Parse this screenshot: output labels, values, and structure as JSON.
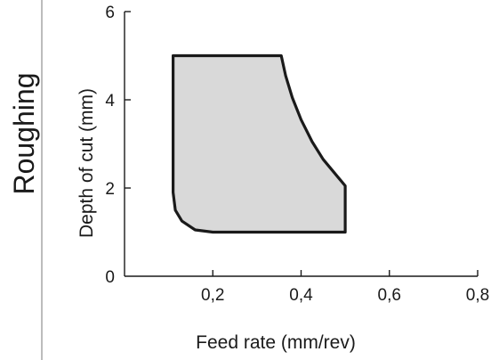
{
  "chart_data": {
    "type": "area",
    "side_label": "Roughing",
    "xlabel": "Feed rate (mm/rev)",
    "ylabel": "Depth of cut (mm)",
    "xlim": [
      0,
      0.8
    ],
    "ylim": [
      0,
      6
    ],
    "x_ticks": [
      {
        "value": 0.2,
        "label": "0,2"
      },
      {
        "value": 0.4,
        "label": "0,4"
      },
      {
        "value": 0.6,
        "label": "0,6"
      },
      {
        "value": 0.8,
        "label": "0,8"
      }
    ],
    "y_ticks": [
      {
        "value": 0,
        "label": "0"
      },
      {
        "value": 2,
        "label": "2"
      },
      {
        "value": 4,
        "label": "4"
      },
      {
        "value": 6,
        "label": "6"
      }
    ],
    "grid": false,
    "region": {
      "name": "",
      "fill": "#d9d9d9",
      "stroke": "#1a1a1a",
      "points": [
        [
          0.11,
          5.0
        ],
        [
          0.355,
          5.0
        ],
        [
          0.365,
          4.55
        ],
        [
          0.38,
          4.05
        ],
        [
          0.4,
          3.55
        ],
        [
          0.425,
          3.05
        ],
        [
          0.45,
          2.65
        ],
        [
          0.475,
          2.35
        ],
        [
          0.5,
          2.05
        ],
        [
          0.5,
          1.0
        ],
        [
          0.2,
          1.0
        ],
        [
          0.16,
          1.05
        ],
        [
          0.13,
          1.25
        ],
        [
          0.115,
          1.5
        ],
        [
          0.11,
          1.9
        ],
        [
          0.11,
          5.0
        ]
      ]
    }
  },
  "colors": {
    "axis": "#1a1a1a",
    "divider": "#7a7a7a"
  }
}
